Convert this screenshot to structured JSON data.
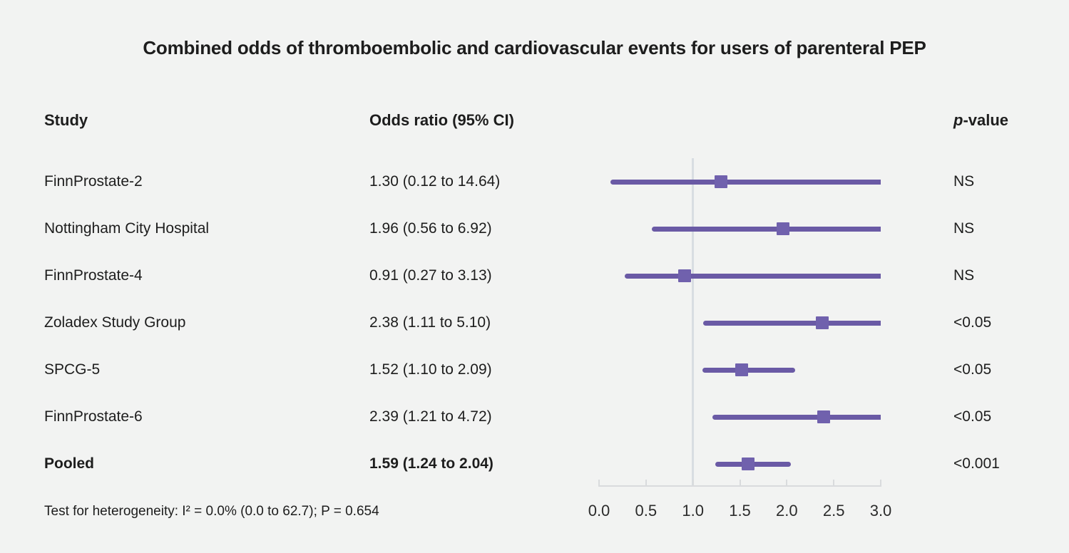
{
  "figure": {
    "title": "Combined odds of thromboembolic and cardiovascular events for users of parenteral PEP",
    "footnote": "Test for heterogeneity: I² = 0.0% (0.0 to 62.7); P = 0.654"
  },
  "columns": {
    "study": "Study",
    "odds_ratio": "Odds ratio (95% CI)",
    "p_value_italic": "p",
    "p_value_rest": "-value"
  },
  "chart_data": {
    "type": "forest",
    "title": "Combined odds of thromboembolic and cardiovascular events for users of parenteral PEP",
    "xlim": [
      0,
      3
    ],
    "x_ticks": [
      0.0,
      0.5,
      1.0,
      1.5,
      2.0,
      2.5,
      3.0
    ],
    "x_tick_labels": [
      "0.0",
      "0.5",
      "1.0",
      "1.5",
      "2.0",
      "2.5",
      "3.0"
    ],
    "reference_line_x": 1.0,
    "grid": false,
    "studies": [
      {
        "name": "FinnProstate-2",
        "or": 1.3,
        "ci_low": 0.12,
        "ci_high": 14.64,
        "label": "1.30 (0.12 to 14.64)",
        "p": "NS",
        "pooled": false
      },
      {
        "name": "Nottingham City Hospital",
        "or": 1.96,
        "ci_low": 0.56,
        "ci_high": 6.92,
        "label": "1.96 (0.56 to 6.92)",
        "p": "NS",
        "pooled": false
      },
      {
        "name": "FinnProstate-4",
        "or": 0.91,
        "ci_low": 0.27,
        "ci_high": 3.13,
        "label": "0.91 (0.27 to 3.13)",
        "p": "NS",
        "pooled": false
      },
      {
        "name": "Zoladex Study Group",
        "or": 2.38,
        "ci_low": 1.11,
        "ci_high": 5.1,
        "label": "2.38 (1.11 to 5.10)",
        "p": "<0.05",
        "pooled": false
      },
      {
        "name": "SPCG-5",
        "or": 1.52,
        "ci_low": 1.1,
        "ci_high": 2.09,
        "label": "1.52 (1.10 to 2.09)",
        "p": "<0.05",
        "pooled": false
      },
      {
        "name": "FinnProstate-6",
        "or": 2.39,
        "ci_low": 1.21,
        "ci_high": 4.72,
        "label": "2.39 (1.21 to 4.72)",
        "p": "<0.05",
        "pooled": false
      },
      {
        "name": "Pooled",
        "or": 1.59,
        "ci_low": 1.24,
        "ci_high": 2.04,
        "label": "1.59 (1.24 to 2.04)",
        "p": "<0.001",
        "pooled": true
      }
    ],
    "colors": {
      "ci_line": "#6a5aa5",
      "marker": "#7061ad",
      "reference_line": "#d8dde2",
      "axis": "#d9dbdd",
      "background": "#f2f3f2",
      "text": "#1d1d1d"
    }
  }
}
